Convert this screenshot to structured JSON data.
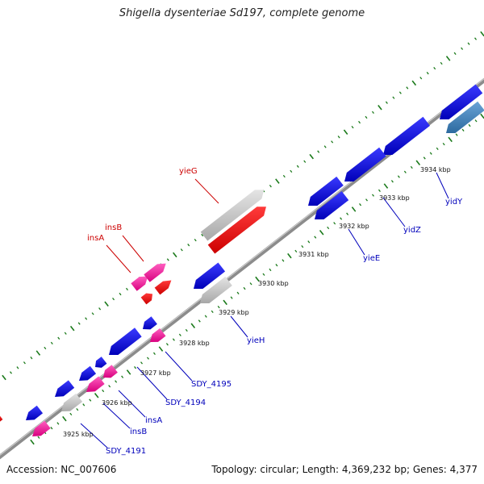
{
  "header": {
    "title": "Shigella dysenteriae Sd197, complete genome"
  },
  "footer": {
    "accession": "Accession: NC_007606",
    "summary": "Topology: circular; Length: 4,369,232 bp; Genes: 4,377"
  },
  "colors": {
    "backbone": "#8c8c8c",
    "forward_tick": "#1b7a1b",
    "gene_blue": "#0c0cdc",
    "gene_pink": "#f0199a",
    "gene_red": "#ee1010",
    "gene_gray": "#bdbdbd",
    "gene_steel": "#3f7fb7",
    "label_red": "#cc0000",
    "label_blue": "#0000bb"
  },
  "scale": {
    "ticks": [
      {
        "label": "3925 kbp"
      },
      {
        "label": "3926 kbp"
      },
      {
        "label": "3927 kbp"
      },
      {
        "label": "3928 kbp"
      },
      {
        "label": "3929 kbp"
      },
      {
        "label": "3930 kbp"
      },
      {
        "label": "3931 kbp"
      },
      {
        "label": "3932 kbp"
      },
      {
        "label": "3933 kbp"
      },
      {
        "label": "3934 kbp"
      }
    ]
  },
  "genes": [
    {
      "name": "yieG",
      "strand": "+",
      "type": "red"
    },
    {
      "name": "insB",
      "strand": "+",
      "type": "pink"
    },
    {
      "name": "insA",
      "strand": "+",
      "type": "pink"
    },
    {
      "name": "yidY",
      "strand": "-",
      "type": "blue"
    },
    {
      "name": "yidZ",
      "strand": "-",
      "type": "blue"
    },
    {
      "name": "yieE",
      "strand": "-",
      "type": "blue"
    },
    {
      "name": "yieH",
      "strand": "-",
      "type": "blue"
    },
    {
      "name": "SDY_4195",
      "strand": "-",
      "type": "blue"
    },
    {
      "name": "SDY_4194",
      "strand": "-",
      "type": "blue"
    },
    {
      "name": "insA",
      "strand": "-",
      "type": "pink"
    },
    {
      "name": "insB",
      "strand": "-",
      "type": "pink"
    },
    {
      "name": "SDY_4191",
      "strand": "-",
      "type": "blue"
    }
  ]
}
